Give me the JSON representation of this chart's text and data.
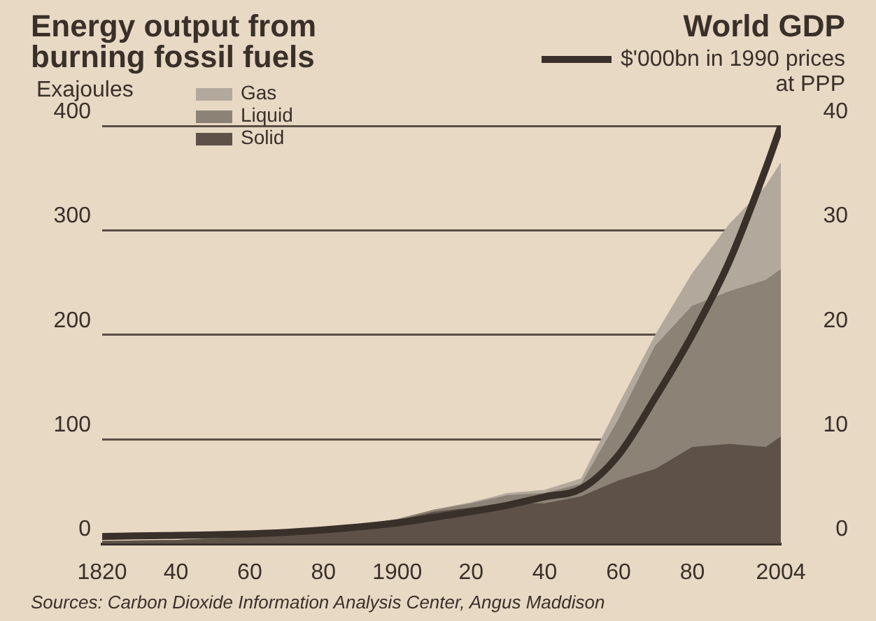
{
  "chart_data": {
    "type": "area",
    "title": "Energy output from burning fossil fuels",
    "ylabel": "Exajoules",
    "y2label": "World GDP",
    "x": [
      1820,
      1840,
      1860,
      1880,
      1900,
      1910,
      1920,
      1930,
      1940,
      1950,
      1960,
      1970,
      1980,
      1990,
      2000,
      2004
    ],
    "stacked": true,
    "series": [
      {
        "name": "Solid",
        "color": "#5e5248",
        "values": [
          2,
          3,
          6,
          12,
          22,
          30,
          34,
          38,
          38,
          45,
          60,
          71,
          92,
          95,
          92,
          102
        ]
      },
      {
        "name": "Liquid",
        "color": "#8c8276",
        "values": [
          0,
          0,
          0,
          0,
          1,
          2,
          4,
          8,
          10,
          12,
          58,
          118,
          135,
          146,
          160,
          160
        ]
      },
      {
        "name": "Gas",
        "color": "#b2a99c",
        "values": [
          0,
          0,
          0,
          0,
          0,
          0,
          1,
          2,
          3,
          5,
          14,
          10,
          31,
          64,
          90,
          102
        ]
      },
      {
        "name": "$'000bn in 1990 prices at PPP",
        "type": "line",
        "axis": "y2",
        "color": "#3a302a",
        "x": [
          1820,
          1870,
          1900,
          1913,
          1930,
          1940,
          1950,
          1960,
          1970,
          1980,
          1990,
          2000,
          2004
        ],
        "values": [
          0.7,
          1.1,
          2.0,
          2.7,
          3.7,
          4.5,
          5.3,
          8.5,
          14,
          20,
          27,
          36,
          40
        ]
      }
    ],
    "xlim": [
      1820,
      2004
    ],
    "xticks": [
      1820,
      {
        "value": 1840,
        "label": "40"
      },
      {
        "value": 1860,
        "label": "60"
      },
      {
        "value": 1880,
        "label": "80"
      },
      1900,
      {
        "value": 1920,
        "label": "20"
      },
      {
        "value": 1940,
        "label": "40"
      },
      {
        "value": 1960,
        "label": "60"
      },
      {
        "value": 1980,
        "label": "80"
      },
      2004
    ],
    "ylim": [
      0,
      400
    ],
    "yticks": [
      0,
      100,
      200,
      300,
      400
    ],
    "y2lim": [
      0,
      40
    ],
    "y2ticks": [
      0,
      10,
      20,
      30,
      40
    ],
    "grid": "y",
    "legend": "top",
    "marker": "none",
    "annotations": [
      "Sources: Carbon Dioxide Information Analysis Center, Angus Maddison"
    ]
  }
}
